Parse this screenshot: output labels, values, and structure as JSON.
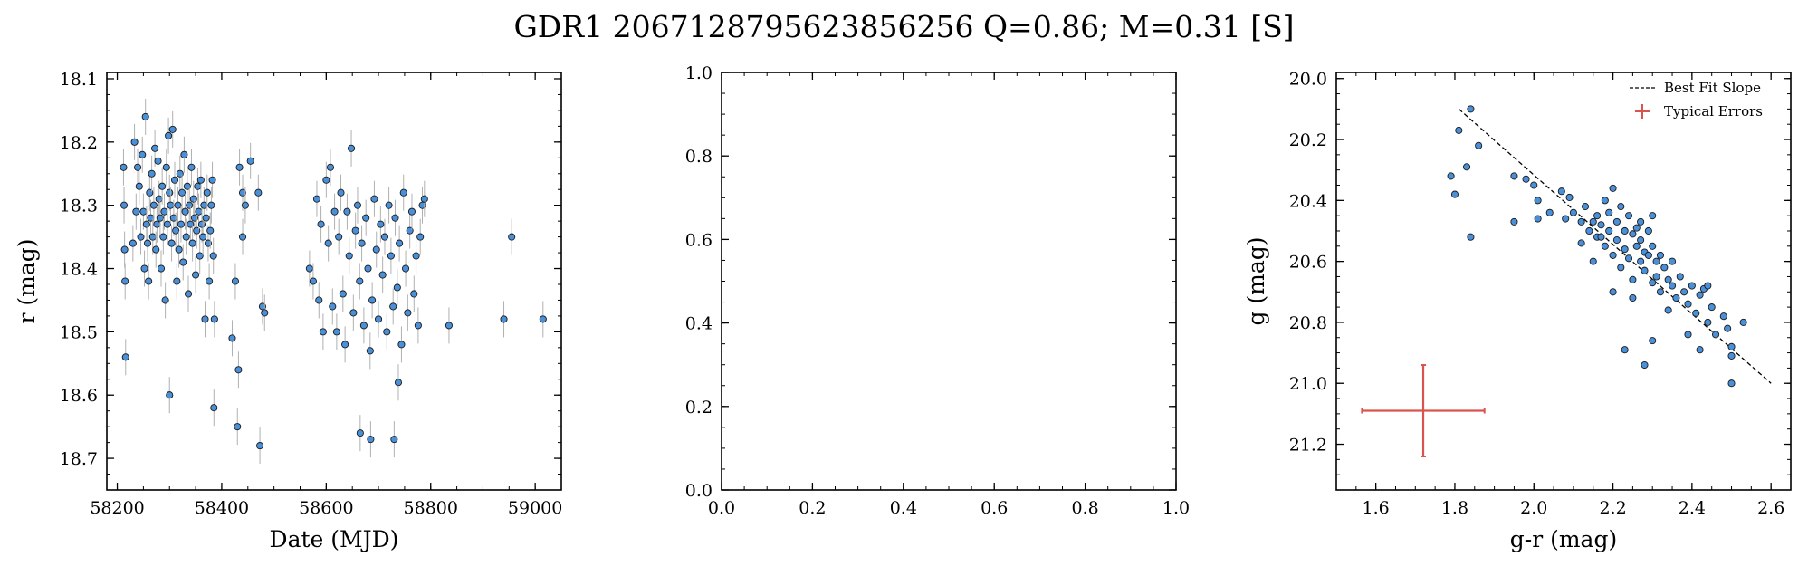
{
  "figure": {
    "title": "GDR1 2067128795623856256  Q=0.86; M=0.31 [S]"
  },
  "chart_data": [
    {
      "type": "scatter",
      "title": "",
      "xlabel": "Date (MJD)",
      "ylabel": "r (mag)",
      "xlim": [
        58180,
        59050
      ],
      "ylim": [
        18.75,
        18.09
      ],
      "y_inverted": true,
      "xticks": [
        58200,
        58400,
        58600,
        58800,
        59000
      ],
      "yticks": [
        18.1,
        18.2,
        18.3,
        18.4,
        18.5,
        18.6,
        18.7
      ],
      "marker_color": "#4a90d9",
      "errorbar_color": "#b0b0b0",
      "points": [
        [
          58212,
          18.24
        ],
        [
          58213,
          18.3
        ],
        [
          58214,
          18.37
        ],
        [
          58215,
          18.42
        ],
        [
          58216,
          18.54
        ],
        [
          58230,
          18.36
        ],
        [
          58233,
          18.2
        ],
        [
          58236,
          18.31
        ],
        [
          58239,
          18.24
        ],
        [
          58242,
          18.27
        ],
        [
          58245,
          18.35
        ],
        [
          58248,
          18.22
        ],
        [
          58250,
          18.31
        ],
        [
          58252,
          18.4
        ],
        [
          58254,
          18.16
        ],
        [
          58256,
          18.33
        ],
        [
          58258,
          18.36
        ],
        [
          58260,
          18.42
        ],
        [
          58262,
          18.28
        ],
        [
          58264,
          18.32
        ],
        [
          58266,
          18.25
        ],
        [
          58268,
          18.35
        ],
        [
          58270,
          18.3
        ],
        [
          58272,
          18.21
        ],
        [
          58274,
          18.37
        ],
        [
          58276,
          18.33
        ],
        [
          58278,
          18.23
        ],
        [
          58280,
          18.29
        ],
        [
          58282,
          18.32
        ],
        [
          58284,
          18.4
        ],
        [
          58286,
          18.27
        ],
        [
          58288,
          18.35
        ],
        [
          58290,
          18.31
        ],
        [
          58292,
          18.45
        ],
        [
          58294,
          18.24
        ],
        [
          58296,
          18.33
        ],
        [
          58298,
          18.19
        ],
        [
          58300,
          18.28
        ],
        [
          58302,
          18.3
        ],
        [
          58304,
          18.36
        ],
        [
          58306,
          18.18
        ],
        [
          58308,
          18.32
        ],
        [
          58310,
          18.26
        ],
        [
          58312,
          18.34
        ],
        [
          58314,
          18.42
        ],
        [
          58316,
          18.3
        ],
        [
          58318,
          18.37
        ],
        [
          58320,
          18.25
        ],
        [
          58322,
          18.33
        ],
        [
          58324,
          18.28
        ],
        [
          58326,
          18.39
        ],
        [
          58328,
          18.22
        ],
        [
          58330,
          18.31
        ],
        [
          58332,
          18.35
        ],
        [
          58334,
          18.27
        ],
        [
          58336,
          18.44
        ],
        [
          58338,
          18.3
        ],
        [
          58340,
          18.33
        ],
        [
          58342,
          18.24
        ],
        [
          58344,
          18.36
        ],
        [
          58346,
          18.29
        ],
        [
          58348,
          18.32
        ],
        [
          58350,
          18.41
        ],
        [
          58352,
          18.34
        ],
        [
          58354,
          18.27
        ],
        [
          58356,
          18.31
        ],
        [
          58358,
          18.38
        ],
        [
          58360,
          18.26
        ],
        [
          58362,
          18.33
        ],
        [
          58364,
          18.35
        ],
        [
          58366,
          18.3
        ],
        [
          58368,
          18.48
        ],
        [
          58370,
          18.32
        ],
        [
          58372,
          18.28
        ],
        [
          58374,
          18.36
        ],
        [
          58376,
          18.42
        ],
        [
          58378,
          18.34
        ],
        [
          58380,
          18.3
        ],
        [
          58382,
          18.26
        ],
        [
          58384,
          18.38
        ],
        [
          58386,
          18.48
        ],
        [
          58300,
          18.6
        ],
        [
          58385,
          18.62
        ],
        [
          58430,
          18.65
        ],
        [
          58473,
          18.68
        ],
        [
          58420,
          18.51
        ],
        [
          58432,
          18.56
        ],
        [
          58426,
          18.42
        ],
        [
          58440,
          18.35
        ],
        [
          58434,
          18.24
        ],
        [
          58440,
          18.28
        ],
        [
          58445,
          18.3
        ],
        [
          58455,
          18.23
        ],
        [
          58470,
          18.28
        ],
        [
          58478,
          18.46
        ],
        [
          58482,
          18.47
        ],
        [
          58568,
          18.4
        ],
        [
          58575,
          18.42
        ],
        [
          58582,
          18.29
        ],
        [
          58586,
          18.45
        ],
        [
          58590,
          18.33
        ],
        [
          58594,
          18.5
        ],
        [
          58600,
          18.26
        ],
        [
          58604,
          18.36
        ],
        [
          58608,
          18.24
        ],
        [
          58612,
          18.46
        ],
        [
          58616,
          18.31
        ],
        [
          58620,
          18.5
        ],
        [
          58624,
          18.35
        ],
        [
          58628,
          18.28
        ],
        [
          58632,
          18.44
        ],
        [
          58636,
          18.52
        ],
        [
          58640,
          18.31
        ],
        [
          58644,
          18.38
        ],
        [
          58648,
          18.21
        ],
        [
          58652,
          18.47
        ],
        [
          58656,
          18.34
        ],
        [
          58660,
          18.3
        ],
        [
          58664,
          18.42
        ],
        [
          58668,
          18.36
        ],
        [
          58672,
          18.49
        ],
        [
          58676,
          18.32
        ],
        [
          58680,
          18.4
        ],
        [
          58684,
          18.53
        ],
        [
          58688,
          18.45
        ],
        [
          58692,
          18.29
        ],
        [
          58696,
          18.37
        ],
        [
          58700,
          18.48
        ],
        [
          58704,
          18.33
        ],
        [
          58708,
          18.41
        ],
        [
          58712,
          18.35
        ],
        [
          58716,
          18.5
        ],
        [
          58720,
          18.3
        ],
        [
          58724,
          18.38
        ],
        [
          58728,
          18.46
        ],
        [
          58732,
          18.32
        ],
        [
          58736,
          18.43
        ],
        [
          58740,
          18.36
        ],
        [
          58744,
          18.52
        ],
        [
          58748,
          18.28
        ],
        [
          58752,
          18.4
        ],
        [
          58756,
          18.47
        ],
        [
          58760,
          18.34
        ],
        [
          58764,
          18.31
        ],
        [
          58768,
          18.44
        ],
        [
          58772,
          18.38
        ],
        [
          58776,
          18.49
        ],
        [
          58780,
          18.35
        ],
        [
          58784,
          18.3
        ],
        [
          58788,
          18.29
        ],
        [
          58665,
          18.66
        ],
        [
          58685,
          18.67
        ],
        [
          58730,
          18.67
        ],
        [
          58738,
          18.58
        ],
        [
          58835,
          18.49
        ],
        [
          58940,
          18.48
        ],
        [
          58955,
          18.35
        ],
        [
          59015,
          18.48
        ]
      ]
    },
    {
      "type": "scatter",
      "title": "",
      "xlabel": "",
      "ylabel": "",
      "xlim": [
        0.0,
        1.0
      ],
      "ylim": [
        0.0,
        1.0
      ],
      "xticks": [
        0.0,
        0.2,
        0.4,
        0.6,
        0.8,
        1.0
      ],
      "yticks": [
        0.0,
        0.2,
        0.4,
        0.6,
        0.8,
        1.0
      ],
      "points": []
    },
    {
      "type": "scatter",
      "title": "",
      "xlabel": "g-r (mag)",
      "ylabel": "g (mag)",
      "xlim": [
        1.5,
        2.65
      ],
      "ylim": [
        21.35,
        19.98
      ],
      "y_inverted": true,
      "xticks": [
        1.6,
        1.8,
        2.0,
        2.2,
        2.4,
        2.6
      ],
      "yticks": [
        20.0,
        20.2,
        20.4,
        20.6,
        20.8,
        21.0,
        21.2
      ],
      "marker_color": "#4a90d9",
      "legend_position": "top-right",
      "legend": [
        "Best Fit Slope",
        "Typical Errors"
      ],
      "fit_line": {
        "x": [
          1.81,
          2.6
        ],
        "y": [
          20.1,
          21.0
        ],
        "style": "dashed",
        "color": "#000000"
      },
      "typical_error": {
        "x": 1.72,
        "y": 21.09,
        "xerr": 0.155,
        "yerr": 0.15,
        "color": "#d9534f"
      },
      "points": [
        [
          1.84,
          20.1
        ],
        [
          1.81,
          20.17
        ],
        [
          1.79,
          20.32
        ],
        [
          1.8,
          20.38
        ],
        [
          1.83,
          20.29
        ],
        [
          1.86,
          20.22
        ],
        [
          1.84,
          20.52
        ],
        [
          1.95,
          20.32
        ],
        [
          1.95,
          20.47
        ],
        [
          1.98,
          20.33
        ],
        [
          2.0,
          20.35
        ],
        [
          2.01,
          20.4
        ],
        [
          2.01,
          20.46
        ],
        [
          2.04,
          20.44
        ],
        [
          2.07,
          20.37
        ],
        [
          2.09,
          20.39
        ],
        [
          2.1,
          20.44
        ],
        [
          2.12,
          20.47
        ],
        [
          2.13,
          20.42
        ],
        [
          2.14,
          20.5
        ],
        [
          2.15,
          20.47
        ],
        [
          2.16,
          20.45
        ],
        [
          2.16,
          20.52
        ],
        [
          2.17,
          20.48
        ],
        [
          2.18,
          20.4
        ],
        [
          2.18,
          20.55
        ],
        [
          2.19,
          20.44
        ],
        [
          2.19,
          20.5
        ],
        [
          2.2,
          20.36
        ],
        [
          2.2,
          20.58
        ],
        [
          2.21,
          20.47
        ],
        [
          2.21,
          20.53
        ],
        [
          2.22,
          20.42
        ],
        [
          2.22,
          20.62
        ],
        [
          2.23,
          20.5
        ],
        [
          2.23,
          20.56
        ],
        [
          2.24,
          20.45
        ],
        [
          2.24,
          20.59
        ],
        [
          2.25,
          20.51
        ],
        [
          2.25,
          20.66
        ],
        [
          2.26,
          20.55
        ],
        [
          2.26,
          20.49
        ],
        [
          2.27,
          20.6
        ],
        [
          2.27,
          20.53
        ],
        [
          2.28,
          20.57
        ],
        [
          2.28,
          20.63
        ],
        [
          2.29,
          20.5
        ],
        [
          2.29,
          20.58
        ],
        [
          2.3,
          20.55
        ],
        [
          2.3,
          20.67
        ],
        [
          2.31,
          20.6
        ],
        [
          2.31,
          20.65
        ],
        [
          2.32,
          20.58
        ],
        [
          2.32,
          20.7
        ],
        [
          2.33,
          20.62
        ],
        [
          2.34,
          20.66
        ],
        [
          2.35,
          20.68
        ],
        [
          2.35,
          20.6
        ],
        [
          2.36,
          20.72
        ],
        [
          2.37,
          20.65
        ],
        [
          2.38,
          20.7
        ],
        [
          2.39,
          20.74
        ],
        [
          2.4,
          20.68
        ],
        [
          2.41,
          20.77
        ],
        [
          2.42,
          20.71
        ],
        [
          2.43,
          20.69
        ],
        [
          2.44,
          20.8
        ],
        [
          2.45,
          20.75
        ],
        [
          2.46,
          20.84
        ],
        [
          2.48,
          20.78
        ],
        [
          2.49,
          20.82
        ],
        [
          2.5,
          20.91
        ],
        [
          2.5,
          20.88
        ],
        [
          2.53,
          20.8
        ],
        [
          2.5,
          21.0
        ],
        [
          2.3,
          20.86
        ],
        [
          2.28,
          20.94
        ],
        [
          2.23,
          20.89
        ],
        [
          2.34,
          20.76
        ],
        [
          2.39,
          20.84
        ],
        [
          2.42,
          20.89
        ],
        [
          2.44,
          20.68
        ],
        [
          2.2,
          20.7
        ],
        [
          2.25,
          20.72
        ],
        [
          2.12,
          20.54
        ],
        [
          2.15,
          20.6
        ],
        [
          2.17,
          20.52
        ],
        [
          2.08,
          20.46
        ],
        [
          2.27,
          20.47
        ],
        [
          2.3,
          20.45
        ]
      ]
    }
  ]
}
